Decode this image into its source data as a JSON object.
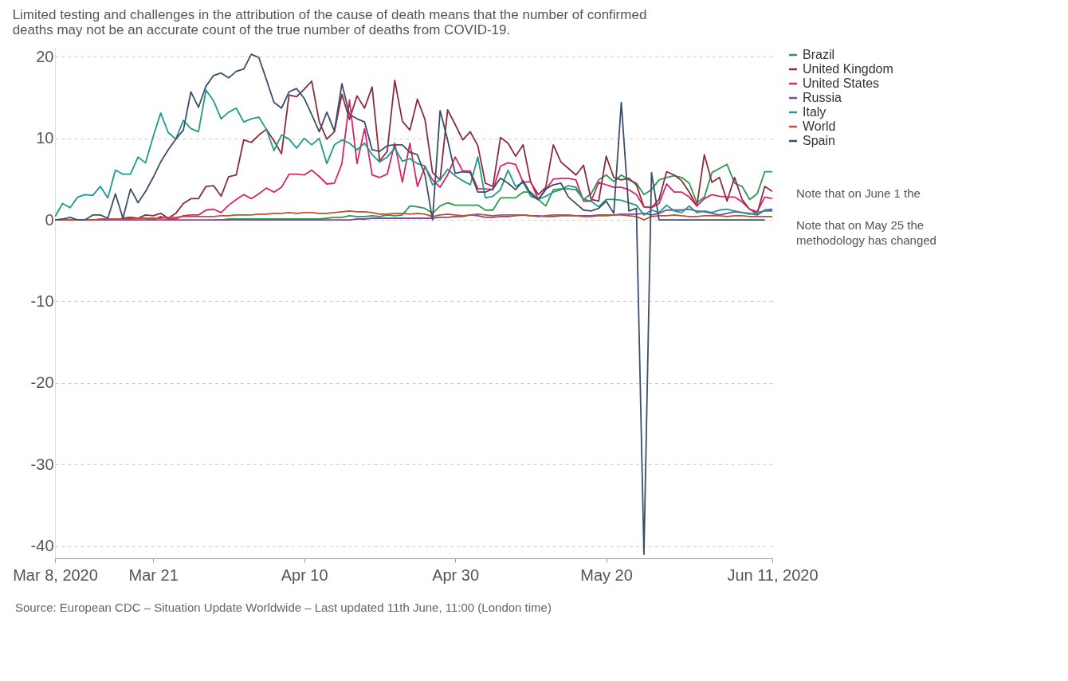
{
  "chart_data": {
    "type": "line",
    "title": "Limited testing and challenges in the attribution of the cause of death means that the number of confirmed deaths may not be an accurate count of the true number of deaths from COVID-19.",
    "x": [
      "2020-03-08",
      "2020-03-09",
      "2020-03-10",
      "2020-03-11",
      "2020-03-12",
      "2020-03-13",
      "2020-03-14",
      "2020-03-15",
      "2020-03-16",
      "2020-03-17",
      "2020-03-18",
      "2020-03-19",
      "2020-03-20",
      "2020-03-21",
      "2020-03-22",
      "2020-03-23",
      "2020-03-24",
      "2020-03-25",
      "2020-03-26",
      "2020-03-27",
      "2020-03-28",
      "2020-03-29",
      "2020-03-30",
      "2020-03-31",
      "2020-04-01",
      "2020-04-02",
      "2020-04-03",
      "2020-04-04",
      "2020-04-05",
      "2020-04-06",
      "2020-04-07",
      "2020-04-08",
      "2020-04-09",
      "2020-04-10",
      "2020-04-11",
      "2020-04-12",
      "2020-04-13",
      "2020-04-14",
      "2020-04-15",
      "2020-04-16",
      "2020-04-17",
      "2020-04-18",
      "2020-04-19",
      "2020-04-20",
      "2020-04-21",
      "2020-04-22",
      "2020-04-23",
      "2020-04-24",
      "2020-04-25",
      "2020-04-26",
      "2020-04-27",
      "2020-04-28",
      "2020-04-29",
      "2020-04-30",
      "2020-05-01",
      "2020-05-02",
      "2020-05-03",
      "2020-05-04",
      "2020-05-05",
      "2020-05-06",
      "2020-05-07",
      "2020-05-08",
      "2020-05-09",
      "2020-05-10",
      "2020-05-11",
      "2020-05-12",
      "2020-05-13",
      "2020-05-14",
      "2020-05-15",
      "2020-05-16",
      "2020-05-17",
      "2020-05-18",
      "2020-05-19",
      "2020-05-20",
      "2020-05-21",
      "2020-05-22",
      "2020-05-23",
      "2020-05-24",
      "2020-05-25",
      "2020-05-26",
      "2020-05-27",
      "2020-05-28",
      "2020-05-29",
      "2020-05-30",
      "2020-05-31",
      "2020-06-01",
      "2020-06-02",
      "2020-06-03",
      "2020-06-04",
      "2020-06-05",
      "2020-06-06",
      "2020-06-07",
      "2020-06-08",
      "2020-06-09",
      "2020-06-10",
      "2020-06-11"
    ],
    "series": [
      {
        "name": "Brazil",
        "color": "#2a9a4f",
        "values": [
          null,
          null,
          null,
          null,
          null,
          null,
          null,
          null,
          null,
          null,
          null,
          null,
          null,
          null,
          null,
          null,
          null,
          null,
          null,
          null,
          null,
          0,
          0,
          0.1,
          0.1,
          0.1,
          0.1,
          0.1,
          0.1,
          0.1,
          0.1,
          0.1,
          0.1,
          0.1,
          0.1,
          0.1,
          0.2,
          0.3,
          0.3,
          0.5,
          0.4,
          0.4,
          0.5,
          0.4,
          0.6,
          0.5,
          0.6,
          1.7,
          1.6,
          1.4,
          0.8,
          1.7,
          2.1,
          1.8,
          1.8,
          1.8,
          1.8,
          1.2,
          1.2,
          2.7,
          2.7,
          2.7,
          3.4,
          3.4,
          2.5,
          1.7,
          3.7,
          3.8,
          3.8,
          3.7,
          2.5,
          3.2,
          4.9,
          5.5,
          4.7,
          5.5,
          4.9,
          4.5,
          3.1,
          3.7,
          4.9,
          5.2,
          5.4,
          5.2,
          4.5,
          2.1,
          2.8,
          5.8,
          6.3,
          6.8,
          4.5,
          4.1,
          2.5,
          3.2,
          5.9,
          5.9
        ]
      },
      {
        "name": "United Kingdom",
        "color": "#8b2c3e",
        "values": [
          0,
          0,
          0,
          0,
          0,
          0,
          0,
          0.1,
          0,
          0.2,
          0.3,
          0.2,
          0.6,
          0.5,
          0.8,
          0.2,
          0.8,
          2.0,
          2.6,
          2.6,
          4.1,
          4.2,
          2.9,
          5.3,
          5.5,
          9.8,
          9.5,
          10.4,
          11.1,
          9.7,
          8.1,
          15.3,
          15.1,
          16.0,
          17.0,
          12.0,
          9.9,
          10.8,
          15.4,
          12.3,
          15.2,
          13.7,
          16.3,
          7.2,
          8.4,
          17.1,
          12.1,
          11.0,
          14.8,
          12.3,
          5.8,
          4.9,
          13.5,
          11.7,
          9.8,
          10.8,
          9.1,
          4.5,
          4.1,
          10.1,
          9.4,
          7.8,
          9.2,
          4.6,
          3.1,
          4.0,
          9.2,
          7.1,
          6.3,
          5.5,
          6.7,
          2.5,
          2.3,
          7.8,
          5.2,
          4.9,
          5.1,
          4.3,
          1.6,
          1.5,
          2.5,
          5.9,
          5.5,
          4.8,
          3.4,
          1.7,
          8.0,
          4.6,
          5.2,
          2.3,
          5.2,
          2.5,
          1.3,
          0.8,
          4.1,
          3.5
        ]
      },
      {
        "name": "United States",
        "color": "#d8246a",
        "values": [
          null,
          null,
          null,
          null,
          null,
          null,
          null,
          null,
          null,
          null,
          null,
          null,
          0,
          0,
          0.4,
          0.1,
          0.1,
          0.5,
          0.6,
          0.6,
          1.2,
          1.3,
          0.9,
          1.8,
          2.5,
          3.1,
          2.6,
          3.2,
          3.9,
          3.4,
          4.0,
          5.6,
          5.6,
          5.5,
          6.1,
          5.3,
          4.4,
          4.5,
          6.9,
          14.7,
          6.9,
          11.2,
          5.5,
          5.2,
          5.6,
          9.4,
          4.6,
          9.4,
          4.1,
          6.5,
          4.9,
          4.0,
          5.5,
          7.7,
          6.0,
          6.0,
          3.8,
          3.8,
          3.7,
          6.6,
          7.0,
          6.8,
          4.6,
          4.7,
          2.5,
          3.7,
          5.0,
          5.1,
          5.1,
          4.9,
          2.3,
          2.3,
          4.6,
          4.3,
          4.0,
          4.0,
          3.7,
          3.1,
          1.6,
          1.5,
          2.0,
          4.4,
          3.4,
          3.4,
          2.8,
          1.7,
          2.6,
          3.1,
          2.9,
          2.8,
          2.8,
          2.2,
          1.3,
          1.0,
          2.8,
          2.6
        ]
      },
      {
        "name": "Russia",
        "color": "#7b4aa8",
        "values": [
          0,
          0,
          0,
          0,
          0,
          0,
          0,
          0,
          0,
          0,
          0,
          0,
          0,
          0,
          0,
          0,
          0,
          0,
          0,
          0,
          0,
          0,
          0,
          0,
          0,
          0,
          0,
          0,
          0,
          0,
          0,
          0,
          0,
          0,
          0,
          0,
          0,
          0,
          0,
          0,
          0.1,
          0.1,
          0.2,
          0.2,
          0.2,
          0.2,
          0.2,
          0.2,
          0.2,
          0.2,
          0.2,
          0.3,
          0.3,
          0.4,
          0.4,
          0.6,
          0.5,
          0.3,
          0.3,
          0.4,
          0.4,
          0.5,
          0.6,
          0.5,
          0.5,
          0.4,
          0.4,
          0.5,
          0.5,
          0.5,
          0.5,
          0.5,
          0.6,
          0.6,
          0.6,
          0.7,
          0.7,
          0.7,
          0.8,
          0.6,
          0.8,
          1.2,
          1.2,
          1.2,
          1.3,
          1.1,
          1.0,
          0.8,
          0.6,
          0.8,
          1.0,
          0.9,
          0.8,
          0.6,
          1.2,
          1.3
        ]
      },
      {
        "name": "Italy",
        "color": "#1f9a8a",
        "values": [
          0.4,
          2.0,
          1.5,
          2.8,
          3.1,
          3.0,
          4.1,
          2.7,
          6.1,
          5.6,
          5.6,
          7.7,
          7.0,
          10.2,
          13.1,
          10.7,
          9.9,
          12.2,
          11.2,
          10.8,
          15.9,
          14.6,
          12.4,
          13.2,
          13.7,
          12.0,
          12.4,
          12.6,
          11.1,
          8.5,
          10.4,
          9.9,
          8.8,
          10.0,
          9.2,
          10.0,
          6.9,
          9.2,
          9.8,
          9.4,
          8.6,
          9.4,
          8.0,
          7.1,
          7.7,
          8.8,
          7.2,
          7.5,
          6.9,
          6.6,
          4.3,
          4.9,
          6.2,
          5.4,
          4.8,
          4.3,
          7.7,
          2.7,
          2.9,
          3.7,
          6.1,
          4.1,
          4.6,
          2.9,
          2.5,
          2.9,
          3.4,
          3.7,
          4.2,
          4.0,
          2.5,
          2.3,
          1.6,
          2.5,
          2.5,
          2.4,
          2.1,
          1.8,
          0.6,
          1.2,
          0.9,
          1.8,
          1.1,
          0.9,
          1.7,
          0.9,
          1.1,
          0.9,
          1.2,
          1.3,
          1.1,
          0.9,
          0.7,
          0.9,
          1.1,
          1.1
        ]
      },
      {
        "name": "World",
        "color": "#c2512b",
        "values": [
          0,
          0,
          0,
          0,
          0,
          0,
          0.1,
          0.1,
          0.1,
          0.1,
          0.1,
          0.2,
          0.2,
          0.2,
          0.2,
          0.3,
          0.3,
          0.4,
          0.4,
          0.4,
          0.4,
          0.4,
          0.5,
          0.5,
          0.6,
          0.6,
          0.6,
          0.7,
          0.7,
          0.8,
          0.8,
          0.9,
          0.8,
          0.9,
          0.9,
          0.8,
          0.8,
          0.9,
          1.0,
          1.1,
          1.0,
          1.0,
          0.9,
          0.7,
          0.7,
          0.8,
          0.8,
          0.7,
          0.8,
          0.7,
          0.4,
          0.6,
          0.7,
          0.6,
          0.5,
          0.6,
          0.7,
          0.6,
          0.5,
          0.6,
          0.6,
          0.6,
          0.6,
          0.5,
          0.4,
          0.5,
          0.6,
          0.6,
          0.6,
          0.5,
          0.4,
          0.4,
          0.5,
          0.5,
          0.6,
          0.6,
          0.5,
          0.4,
          0.0,
          0.4,
          0.5,
          0.5,
          0.6,
          0.5,
          0.4,
          0.4,
          0.5,
          0.5,
          0.5,
          0.4,
          0.5,
          0.5,
          0.4,
          0.4,
          0.4,
          0.4
        ]
      },
      {
        "name": "Spain",
        "color": "#3b4f6b",
        "values": [
          0,
          0.1,
          0.3,
          0,
          0,
          0.6,
          0.6,
          0.2,
          3.2,
          0.2,
          3.8,
          2.1,
          3.5,
          5.2,
          7.1,
          8.6,
          9.9,
          11.0,
          15.7,
          13.8,
          16.4,
          17.7,
          18.0,
          17.4,
          18.2,
          18.5,
          20.3,
          19.9,
          17.2,
          14.4,
          13.7,
          15.7,
          16.1,
          14.9,
          12.9,
          10.8,
          13.2,
          10.9,
          16.7,
          12.9,
          12.4,
          12.0,
          8.6,
          8.4,
          9.1,
          9.2,
          9.2,
          8.3,
          8.0,
          5.5,
          0,
          13.4,
          9.8,
          5.7,
          5.9,
          5.8,
          3.4,
          3.4,
          3.8,
          5.1,
          4.5,
          3.7,
          4.8,
          3.2,
          2.5,
          3.8,
          4.3,
          4.5,
          2.8,
          2.0,
          1.2,
          1.1,
          1.4,
          2.3,
          0.8,
          14.4,
          1.1,
          1.4,
          -41,
          5.8,
          0,
          0,
          0,
          0,
          0,
          0,
          0,
          0,
          0,
          0,
          0,
          0,
          0,
          0,
          0,
          null
        ]
      }
    ],
    "xlim": [
      "2020-03-08",
      "2020-06-11"
    ],
    "xticks": [
      {
        "value": "2020-03-08",
        "label": "Mar 8, 2020"
      },
      {
        "value": "2020-03-21",
        "label": "Mar 21"
      },
      {
        "value": "2020-04-10",
        "label": "Apr 10"
      },
      {
        "value": "2020-04-30",
        "label": "Apr 30"
      },
      {
        "value": "2020-05-20",
        "label": "May 20"
      },
      {
        "value": "2020-06-11",
        "label": "Jun 11, 2020"
      }
    ],
    "ylim": [
      -41.5,
      21
    ],
    "yticks": [
      -40,
      -30,
      -20,
      -10,
      0,
      10,
      20
    ],
    "grid": "y",
    "legend": "right",
    "line_style": "solid",
    "marker": "none",
    "annotations": [
      "Note that on June 1 the",
      "Note that on May 25 the methodology has changed",
      "Source: European CDC – Situation Update Worldwide – Last updated 11th June, 11:00 (London time)"
    ]
  }
}
